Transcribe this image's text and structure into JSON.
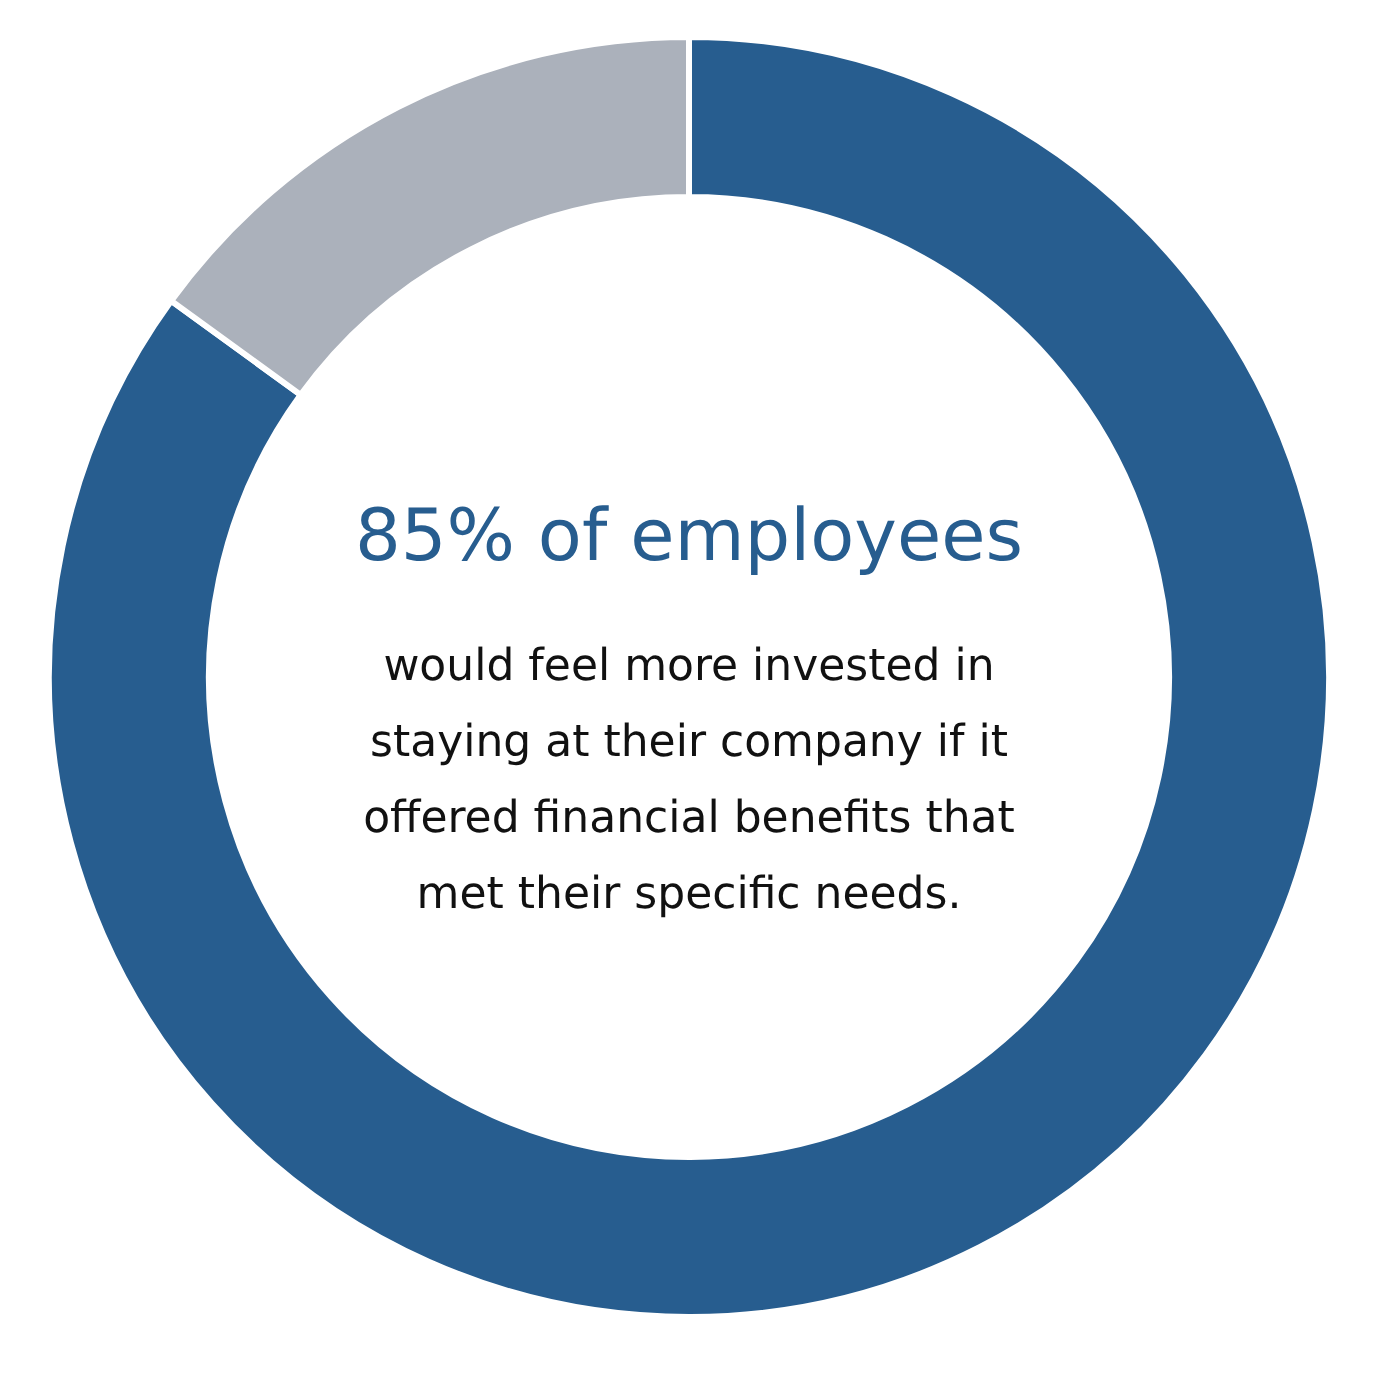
{
  "chart_data": {
    "type": "donut",
    "title": "85% of employees",
    "annotations": [
      "would feel more invested in staying at their company if it offered financial benefits that met their specific needs."
    ],
    "categories": [
      null,
      null
    ],
    "values": [
      85,
      15
    ],
    "colors": [
      "#275d8f",
      "#abb1bb"
    ]
  }
}
